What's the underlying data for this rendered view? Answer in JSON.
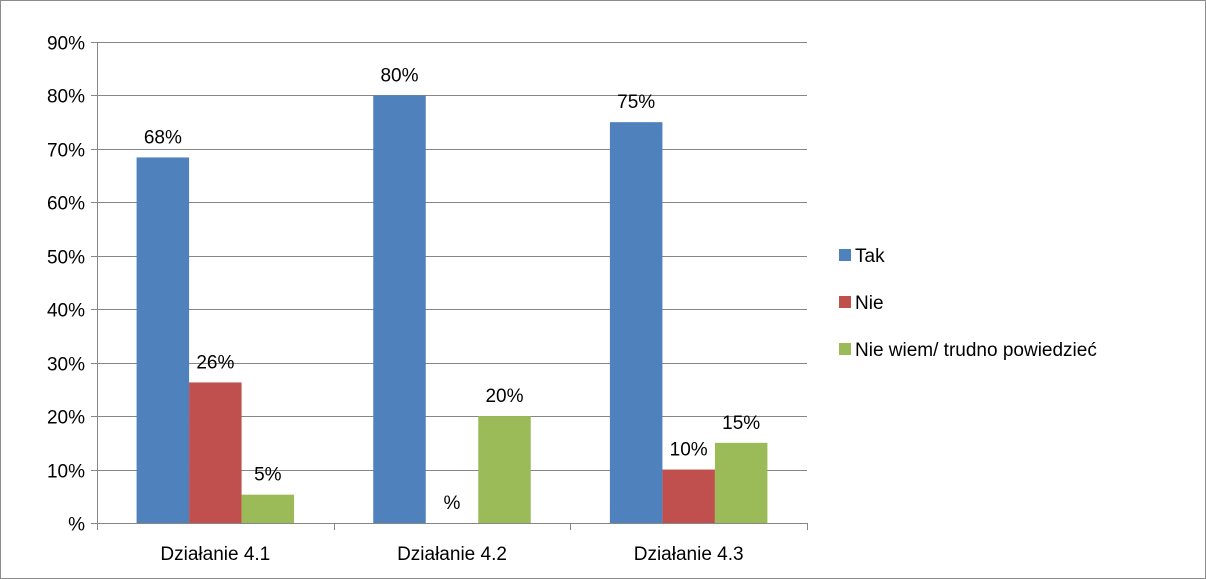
{
  "chart_data": {
    "type": "bar",
    "title": "",
    "xlabel": "",
    "ylabel": "",
    "ylim": [
      0,
      90
    ],
    "y_ticks": [
      0,
      10,
      20,
      30,
      40,
      50,
      60,
      70,
      80,
      90
    ],
    "y_tick_labels": [
      "%",
      "10%",
      "20%",
      "30%",
      "40%",
      "50%",
      "60%",
      "70%",
      "80%",
      "90%"
    ],
    "grid": true,
    "legend_position": "right",
    "categories": [
      "Działanie 4.1",
      "Działanie 4.2",
      "Działanie 4.3"
    ],
    "series": [
      {
        "name": "Tak",
        "color": "#4f81bd",
        "values": [
          68.4,
          80,
          75
        ],
        "labels": [
          "68%",
          "80%",
          "75%"
        ]
      },
      {
        "name": "Nie",
        "color": "#c0504d",
        "values": [
          26.3,
          0,
          10
        ],
        "labels": [
          "26%",
          "%",
          "10%"
        ]
      },
      {
        "name": "Nie wiem/ trudno powiedzieć",
        "color": "#9bbb59",
        "values": [
          5.3,
          20,
          15
        ],
        "labels": [
          "5%",
          "20%",
          "15%"
        ]
      }
    ]
  }
}
